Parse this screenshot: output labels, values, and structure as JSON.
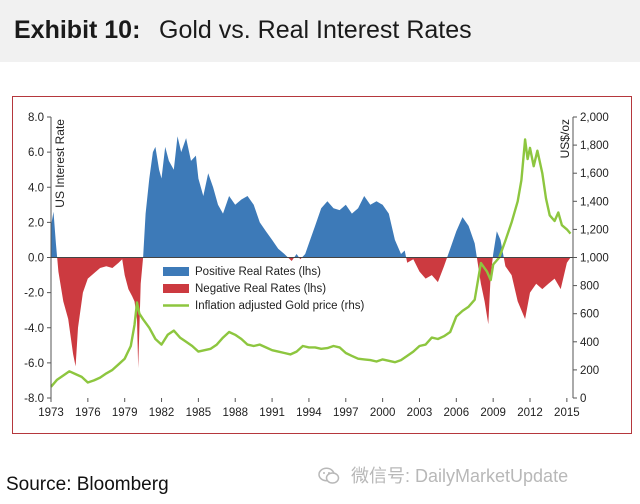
{
  "header": {
    "exhibit_label": "Exhibit 10:",
    "title": "Gold vs. Real Interest Rates"
  },
  "source": "Source: Bloomberg",
  "watermark": {
    "icon": "wechat-icon",
    "text": "微信号: DailyMarketUpdate"
  },
  "colors": {
    "positive": "#3d7ab8",
    "negative": "#cc3a40",
    "gold": "#8dc63f",
    "frame": "#b5373d",
    "axis_text": "#222222"
  },
  "chart_data": {
    "type": "area",
    "title": "Gold vs. Real Interest Rates",
    "x_tick_labels": [
      "1973",
      "1976",
      "1979",
      "1982",
      "1985",
      "1988",
      "1991",
      "1994",
      "1997",
      "2000",
      "2003",
      "2006",
      "2009",
      "2012",
      "2015"
    ],
    "xlim": [
      1973,
      2015.5
    ],
    "y_left": {
      "label": "US Interest Rate",
      "ylim": [
        -8,
        8
      ],
      "ticks": [
        "8.0",
        "6.0",
        "4.0",
        "2.0",
        "0.0",
        "-2.0",
        "-4.0",
        "-6.0",
        "-8.0"
      ]
    },
    "y_right": {
      "label": "US$/oz",
      "ylim": [
        0,
        2000
      ],
      "ticks": [
        "2,000",
        "1,800",
        "1,600",
        "1,400",
        "1,200",
        "1,000",
        "800",
        "600",
        "400",
        "200",
        "0"
      ]
    },
    "legend": {
      "position": "center",
      "entries": [
        "Positive Real Rates (lhs)",
        "Negative Real Rates (lhs)",
        "Inflation adjusted Gold price (rhs)"
      ]
    },
    "grid": false,
    "series": [
      {
        "name": "Real Rates",
        "axis": "left",
        "points": [
          [
            1973.0,
            1.8
          ],
          [
            1973.2,
            2.6
          ],
          [
            1973.4,
            0.8
          ],
          [
            1973.6,
            -0.8
          ],
          [
            1974.0,
            -2.5
          ],
          [
            1974.4,
            -3.5
          ],
          [
            1974.8,
            -5.5
          ],
          [
            1975.0,
            -6.2
          ],
          [
            1975.2,
            -4.0
          ],
          [
            1975.6,
            -2.0
          ],
          [
            1976.0,
            -1.2
          ],
          [
            1976.5,
            -0.9
          ],
          [
            1977.0,
            -0.6
          ],
          [
            1977.5,
            -0.5
          ],
          [
            1978.0,
            -0.6
          ],
          [
            1978.5,
            -0.3
          ],
          [
            1978.8,
            -0.1
          ],
          [
            1979.0,
            -1.0
          ],
          [
            1979.3,
            -1.8
          ],
          [
            1979.6,
            -2.2
          ],
          [
            1979.8,
            -2.5
          ],
          [
            1980.0,
            -3.5
          ],
          [
            1980.1,
            -6.3
          ],
          [
            1980.2,
            -4.0
          ],
          [
            1980.3,
            -1.5
          ],
          [
            1980.5,
            0.0
          ],
          [
            1980.7,
            2.5
          ],
          [
            1981.0,
            4.5
          ],
          [
            1981.3,
            6.0
          ],
          [
            1981.5,
            6.3
          ],
          [
            1981.8,
            5.0
          ],
          [
            1982.0,
            4.5
          ],
          [
            1982.3,
            6.3
          ],
          [
            1982.6,
            5.5
          ],
          [
            1983.0,
            5.0
          ],
          [
            1983.3,
            6.9
          ],
          [
            1983.6,
            6.0
          ],
          [
            1984.0,
            6.8
          ],
          [
            1984.4,
            5.5
          ],
          [
            1984.8,
            5.8
          ],
          [
            1985.0,
            4.5
          ],
          [
            1985.4,
            3.5
          ],
          [
            1985.8,
            4.8
          ],
          [
            1986.2,
            4.0
          ],
          [
            1986.6,
            3.0
          ],
          [
            1987.0,
            2.5
          ],
          [
            1987.5,
            3.5
          ],
          [
            1988.0,
            3.0
          ],
          [
            1988.5,
            3.3
          ],
          [
            1989.0,
            3.5
          ],
          [
            1989.5,
            3.0
          ],
          [
            1990.0,
            2.0
          ],
          [
            1990.5,
            1.5
          ],
          [
            1991.0,
            1.0
          ],
          [
            1991.5,
            0.5
          ],
          [
            1992.0,
            0.2
          ],
          [
            1992.3,
            0.0
          ],
          [
            1992.6,
            -0.2
          ],
          [
            1993.0,
            0.2
          ],
          [
            1993.3,
            -0.1
          ],
          [
            1993.7,
            0.2
          ],
          [
            1994.0,
            0.8
          ],
          [
            1994.5,
            1.8
          ],
          [
            1995.0,
            2.8
          ],
          [
            1995.5,
            3.2
          ],
          [
            1996.0,
            2.8
          ],
          [
            1996.5,
            2.7
          ],
          [
            1997.0,
            3.0
          ],
          [
            1997.5,
            2.5
          ],
          [
            1998.0,
            2.8
          ],
          [
            1998.5,
            3.5
          ],
          [
            1999.0,
            3.0
          ],
          [
            1999.5,
            3.2
          ],
          [
            2000.0,
            3.0
          ],
          [
            2000.5,
            2.5
          ],
          [
            2001.0,
            1.0
          ],
          [
            2001.5,
            0.2
          ],
          [
            2001.8,
            0.4
          ],
          [
            2002.0,
            -0.3
          ],
          [
            2002.5,
            -0.1
          ],
          [
            2003.0,
            -0.8
          ],
          [
            2003.5,
            -1.2
          ],
          [
            2004.0,
            -1.0
          ],
          [
            2004.5,
            -1.4
          ],
          [
            2005.0,
            -0.5
          ],
          [
            2005.5,
            0.5
          ],
          [
            2006.0,
            1.5
          ],
          [
            2006.5,
            2.3
          ],
          [
            2007.0,
            1.8
          ],
          [
            2007.5,
            0.8
          ],
          [
            2008.0,
            -1.5
          ],
          [
            2008.3,
            -2.5
          ],
          [
            2008.6,
            -3.8
          ],
          [
            2008.8,
            -1.0
          ],
          [
            2009.0,
            0.2
          ],
          [
            2009.3,
            1.5
          ],
          [
            2009.6,
            1.0
          ],
          [
            2010.0,
            -0.5
          ],
          [
            2010.5,
            -1.0
          ],
          [
            2011.0,
            -2.5
          ],
          [
            2011.3,
            -3.0
          ],
          [
            2011.6,
            -3.5
          ],
          [
            2012.0,
            -2.0
          ],
          [
            2012.5,
            -1.5
          ],
          [
            2013.0,
            -1.8
          ],
          [
            2013.5,
            -1.5
          ],
          [
            2014.0,
            -1.2
          ],
          [
            2014.5,
            -1.8
          ],
          [
            2015.0,
            -0.3
          ],
          [
            2015.3,
            0.0
          ]
        ]
      },
      {
        "name": "Inflation adjusted Gold price",
        "axis": "right",
        "points": [
          [
            1973.0,
            80
          ],
          [
            1973.5,
            130
          ],
          [
            1974.0,
            160
          ],
          [
            1974.5,
            190
          ],
          [
            1975.0,
            170
          ],
          [
            1975.5,
            150
          ],
          [
            1976.0,
            110
          ],
          [
            1976.5,
            125
          ],
          [
            1977.0,
            145
          ],
          [
            1977.5,
            175
          ],
          [
            1978.0,
            200
          ],
          [
            1978.5,
            240
          ],
          [
            1979.0,
            280
          ],
          [
            1979.5,
            370
          ],
          [
            1979.8,
            520
          ],
          [
            1980.0,
            680
          ],
          [
            1980.2,
            600
          ],
          [
            1980.5,
            560
          ],
          [
            1981.0,
            500
          ],
          [
            1981.5,
            420
          ],
          [
            1982.0,
            380
          ],
          [
            1982.5,
            450
          ],
          [
            1983.0,
            480
          ],
          [
            1983.5,
            430
          ],
          [
            1984.0,
            400
          ],
          [
            1984.5,
            370
          ],
          [
            1985.0,
            330
          ],
          [
            1985.5,
            340
          ],
          [
            1986.0,
            350
          ],
          [
            1986.5,
            380
          ],
          [
            1987.0,
            430
          ],
          [
            1987.5,
            470
          ],
          [
            1988.0,
            450
          ],
          [
            1988.5,
            420
          ],
          [
            1989.0,
            380
          ],
          [
            1989.5,
            370
          ],
          [
            1990.0,
            380
          ],
          [
            1990.5,
            360
          ],
          [
            1991.0,
            340
          ],
          [
            1991.5,
            330
          ],
          [
            1992.0,
            320
          ],
          [
            1992.5,
            310
          ],
          [
            1993.0,
            330
          ],
          [
            1993.5,
            370
          ],
          [
            1994.0,
            360
          ],
          [
            1994.5,
            360
          ],
          [
            1995.0,
            350
          ],
          [
            1995.5,
            355
          ],
          [
            1996.0,
            370
          ],
          [
            1996.5,
            360
          ],
          [
            1997.0,
            320
          ],
          [
            1997.5,
            300
          ],
          [
            1998.0,
            280
          ],
          [
            1998.5,
            275
          ],
          [
            1999.0,
            270
          ],
          [
            1999.5,
            260
          ],
          [
            2000.0,
            275
          ],
          [
            2000.5,
            265
          ],
          [
            2001.0,
            255
          ],
          [
            2001.5,
            270
          ],
          [
            2002.0,
            300
          ],
          [
            2002.5,
            330
          ],
          [
            2003.0,
            370
          ],
          [
            2003.5,
            380
          ],
          [
            2004.0,
            430
          ],
          [
            2004.5,
            420
          ],
          [
            2005.0,
            440
          ],
          [
            2005.5,
            470
          ],
          [
            2006.0,
            580
          ],
          [
            2006.5,
            620
          ],
          [
            2007.0,
            650
          ],
          [
            2007.5,
            700
          ],
          [
            2008.0,
            960
          ],
          [
            2008.5,
            900
          ],
          [
            2008.8,
            840
          ],
          [
            2009.0,
            950
          ],
          [
            2009.5,
            1000
          ],
          [
            2010.0,
            1120
          ],
          [
            2010.5,
            1250
          ],
          [
            2011.0,
            1400
          ],
          [
            2011.3,
            1550
          ],
          [
            2011.6,
            1840
          ],
          [
            2011.8,
            1700
          ],
          [
            2012.0,
            1780
          ],
          [
            2012.3,
            1650
          ],
          [
            2012.6,
            1760
          ],
          [
            2013.0,
            1600
          ],
          [
            2013.3,
            1420
          ],
          [
            2013.6,
            1300
          ],
          [
            2014.0,
            1260
          ],
          [
            2014.3,
            1320
          ],
          [
            2014.6,
            1230
          ],
          [
            2015.0,
            1200
          ],
          [
            2015.3,
            1170
          ]
        ]
      }
    ]
  }
}
